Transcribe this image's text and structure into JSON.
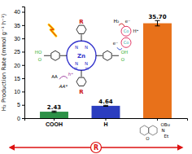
{
  "chart_data": {
    "type": "bar",
    "categories": [
      "COOH",
      "H",
      null
    ],
    "values": [
      2.43,
      4.64,
      35.7
    ],
    "value_labels": [
      "2.43",
      "4.64",
      "35.70"
    ],
    "errors": [
      0.25,
      0.18,
      1.0
    ],
    "colors": [
      "#2d9147",
      "#2b3dbf",
      "#e8711a"
    ],
    "ylabel": "H₂ Production Rate (mmol g⁻¹ h⁻¹)",
    "ylim": [
      0,
      42
    ],
    "yticks": [
      0,
      5,
      10,
      15,
      20,
      25,
      30,
      35,
      40
    ],
    "data_labels": true,
    "annotations": [
      {
        "text": "Zn",
        "color": "#3333cc"
      },
      {
        "text": "N",
        "color": "#3333cc"
      },
      {
        "text": "N",
        "color": "#3333cc"
      },
      {
        "text": "N",
        "color": "#3333cc"
      },
      {
        "text": "N",
        "color": "#3333cc"
      },
      {
        "text": "H",
        "color": "#3333cc"
      },
      {
        "text": "H",
        "color": "#3333cc"
      },
      {
        "text": "R",
        "color": "#cc1111"
      },
      {
        "text": "R",
        "color": "#cc1111"
      },
      {
        "text": "HO",
        "color": "#22aa22"
      },
      {
        "text": "O",
        "color": "#22aa22"
      },
      {
        "text": "OH",
        "color": "#22aa22"
      },
      {
        "text": "O",
        "color": "#22aa22"
      },
      {
        "text": "Co",
        "color": "#22aaaa"
      },
      {
        "text": "Co",
        "color": "#22aaaa"
      },
      {
        "text": "H₂",
        "color": "black"
      },
      {
        "text": "H⁺",
        "color": "black"
      },
      {
        "text": "e⁻",
        "color": "black"
      },
      {
        "text": "e⁻",
        "color": "black"
      },
      {
        "text": "AA",
        "color": "black"
      },
      {
        "text": "AA*",
        "color": "black"
      },
      {
        "text": "h⁺",
        "color": "#993399"
      },
      {
        "text": "R",
        "color": "#dd1111"
      },
      {
        "text": "OBu",
        "color": "black"
      },
      {
        "text": "N",
        "color": "black"
      },
      {
        "text": "Et",
        "color": "black"
      },
      {
        "text": "O",
        "color": "black"
      }
    ]
  }
}
